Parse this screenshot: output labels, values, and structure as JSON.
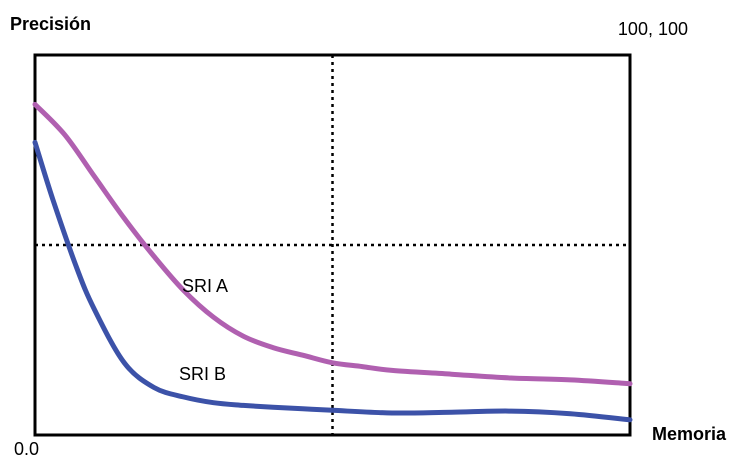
{
  "chart_data": {
    "type": "line",
    "title": "",
    "ylabel": "Precisión",
    "xlabel": "Memoria",
    "corner_labels": {
      "origin": "0.0",
      "top_right": "100, 100"
    },
    "xlim": [
      0,
      100
    ],
    "ylim": [
      0,
      100
    ],
    "reference_lines": {
      "x": 50,
      "y": 50
    },
    "grid": false,
    "series": [
      {
        "name": "SRI A",
        "color": "#b060b0",
        "x": [
          0,
          5,
          10,
          15,
          20,
          25,
          30,
          35,
          40,
          45,
          50,
          55,
          60,
          70,
          80,
          90,
          100
        ],
        "y": [
          87,
          79,
          68,
          57,
          47,
          38,
          31,
          26,
          23,
          21,
          19,
          18,
          17,
          16,
          15,
          14.5,
          13.5
        ]
      },
      {
        "name": "SRI B",
        "color": "#3c52a8",
        "x": [
          0,
          3,
          7,
          10,
          15,
          20,
          25,
          30,
          35,
          40,
          45,
          50,
          60,
          70,
          80,
          90,
          100
        ],
        "y": [
          77,
          62,
          44,
          33,
          19,
          12.5,
          10,
          8.5,
          7.8,
          7.3,
          6.9,
          6.5,
          5.8,
          6,
          6.3,
          5.6,
          4
        ]
      }
    ]
  }
}
